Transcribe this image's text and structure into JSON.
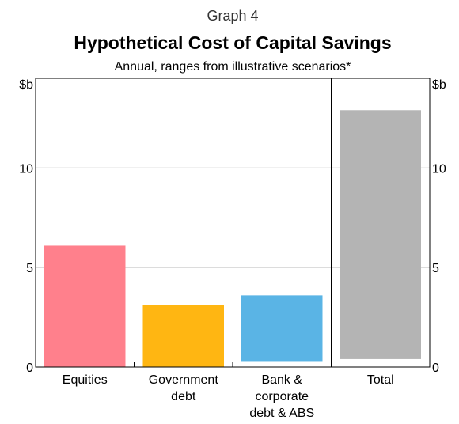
{
  "graph_number": "Graph 4",
  "chart_data": {
    "type": "bar",
    "title": "Hypothetical Cost of Capital Savings",
    "subtitle": "Annual, ranges from illustrative scenarios*",
    "y_unit_left": "$b",
    "y_unit_right": "$b",
    "ylim": [
      0,
      14.5
    ],
    "yticks": [
      0,
      5,
      10
    ],
    "grid": true,
    "categories": [
      {
        "label_lines": [
          "Equities"
        ],
        "low": 0.0,
        "high": 6.1,
        "color": "#ff808c"
      },
      {
        "label_lines": [
          "Government",
          "debt"
        ],
        "low": 0.0,
        "high": 3.1,
        "color": "#ffb612"
      },
      {
        "label_lines": [
          "Bank &",
          "corporate",
          "debt & ABS"
        ],
        "low": 0.3,
        "high": 3.6,
        "color": "#5ab4e5"
      },
      {
        "label_lines": [
          "Total"
        ],
        "low": 0.4,
        "high": 12.9,
        "color": "#b4b4b4"
      }
    ]
  }
}
